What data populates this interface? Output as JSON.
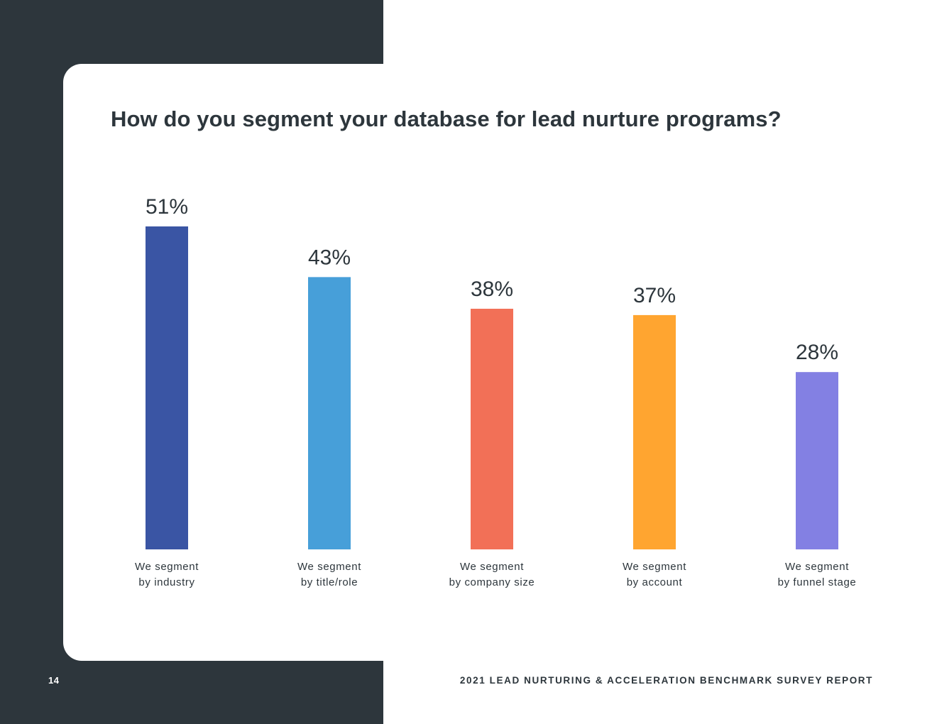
{
  "page": {
    "number": "14",
    "report_title": "2021 LEAD NURTURING & ACCELERATION BENCHMARK SURVEY REPORT"
  },
  "colors": {
    "dark_panel": "#2d363c",
    "text": "#2d363c"
  },
  "chart_data": {
    "type": "bar",
    "title": "How do you segment your database for lead nurture programs?",
    "xlabel": "",
    "ylabel": "",
    "ylim": [
      0,
      51
    ],
    "grid": false,
    "legend": "none",
    "categories": [
      [
        "We segment",
        "by industry"
      ],
      [
        "We segment",
        "by title/role"
      ],
      [
        "We segment",
        "by company size"
      ],
      [
        "We segment",
        "by account"
      ],
      [
        "We segment",
        "by funnel stage"
      ]
    ],
    "values": [
      51,
      43,
      38,
      37,
      28
    ],
    "value_labels": [
      "51%",
      "43%",
      "38%",
      "37%",
      "28%"
    ],
    "bar_colors": [
      "#3a55a4",
      "#479fd9",
      "#f27057",
      "#ffa530",
      "#8380e3"
    ]
  }
}
